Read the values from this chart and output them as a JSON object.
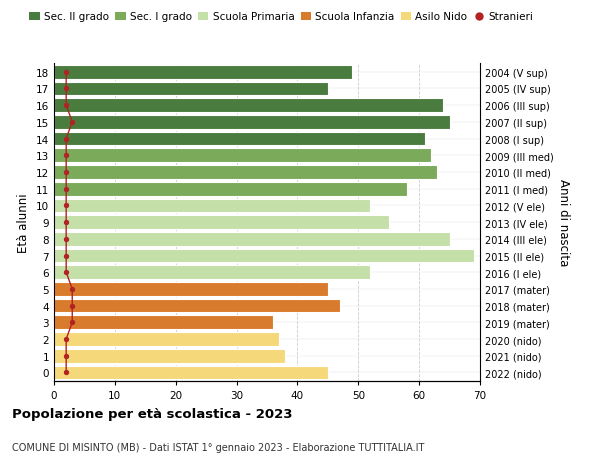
{
  "ages": [
    18,
    17,
    16,
    15,
    14,
    13,
    12,
    11,
    10,
    9,
    8,
    7,
    6,
    5,
    4,
    3,
    2,
    1,
    0
  ],
  "right_labels": [
    "2004 (V sup)",
    "2005 (IV sup)",
    "2006 (III sup)",
    "2007 (II sup)",
    "2008 (I sup)",
    "2009 (III med)",
    "2010 (II med)",
    "2011 (I med)",
    "2012 (V ele)",
    "2013 (IV ele)",
    "2014 (III ele)",
    "2015 (II ele)",
    "2016 (I ele)",
    "2017 (mater)",
    "2018 (mater)",
    "2019 (mater)",
    "2020 (nido)",
    "2021 (nido)",
    "2022 (nido)"
  ],
  "bar_values": [
    49,
    45,
    64,
    65,
    61,
    62,
    63,
    58,
    52,
    55,
    65,
    69,
    52,
    45,
    47,
    36,
    37,
    38,
    45
  ],
  "bar_colors": [
    "#4a7c3f",
    "#4a7c3f",
    "#4a7c3f",
    "#4a7c3f",
    "#4a7c3f",
    "#7aaa5a",
    "#7aaa5a",
    "#7aaa5a",
    "#c5dfa8",
    "#c5dfa8",
    "#c5dfa8",
    "#c5dfa8",
    "#c5dfa8",
    "#d97b2c",
    "#d97b2c",
    "#d97b2c",
    "#f5d87a",
    "#f5d87a",
    "#f5d87a"
  ],
  "stranieri_values": [
    2,
    2,
    2,
    3,
    2,
    2,
    2,
    2,
    2,
    2,
    2,
    2,
    2,
    3,
    3,
    3,
    2,
    2,
    2
  ],
  "stranieri_color": "#b22222",
  "legend_labels": [
    "Sec. II grado",
    "Sec. I grado",
    "Scuola Primaria",
    "Scuola Infanzia",
    "Asilo Nido",
    "Stranieri"
  ],
  "legend_colors": [
    "#4a7c3f",
    "#7aaa5a",
    "#c5dfa8",
    "#d97b2c",
    "#f5d87a",
    "#b22222"
  ],
  "ylabel": "Età alunni",
  "right_ylabel": "Anni di nascita",
  "title": "Popolazione per età scolastica - 2023",
  "subtitle": "COMUNE DI MISINTO (MB) - Dati ISTAT 1° gennaio 2023 - Elaborazione TUTTITALIA.IT",
  "xlim": [
    0,
    70
  ],
  "xticks": [
    0,
    10,
    20,
    30,
    40,
    50,
    60,
    70
  ],
  "background_color": "#ffffff",
  "grid_color": "#cccccc"
}
